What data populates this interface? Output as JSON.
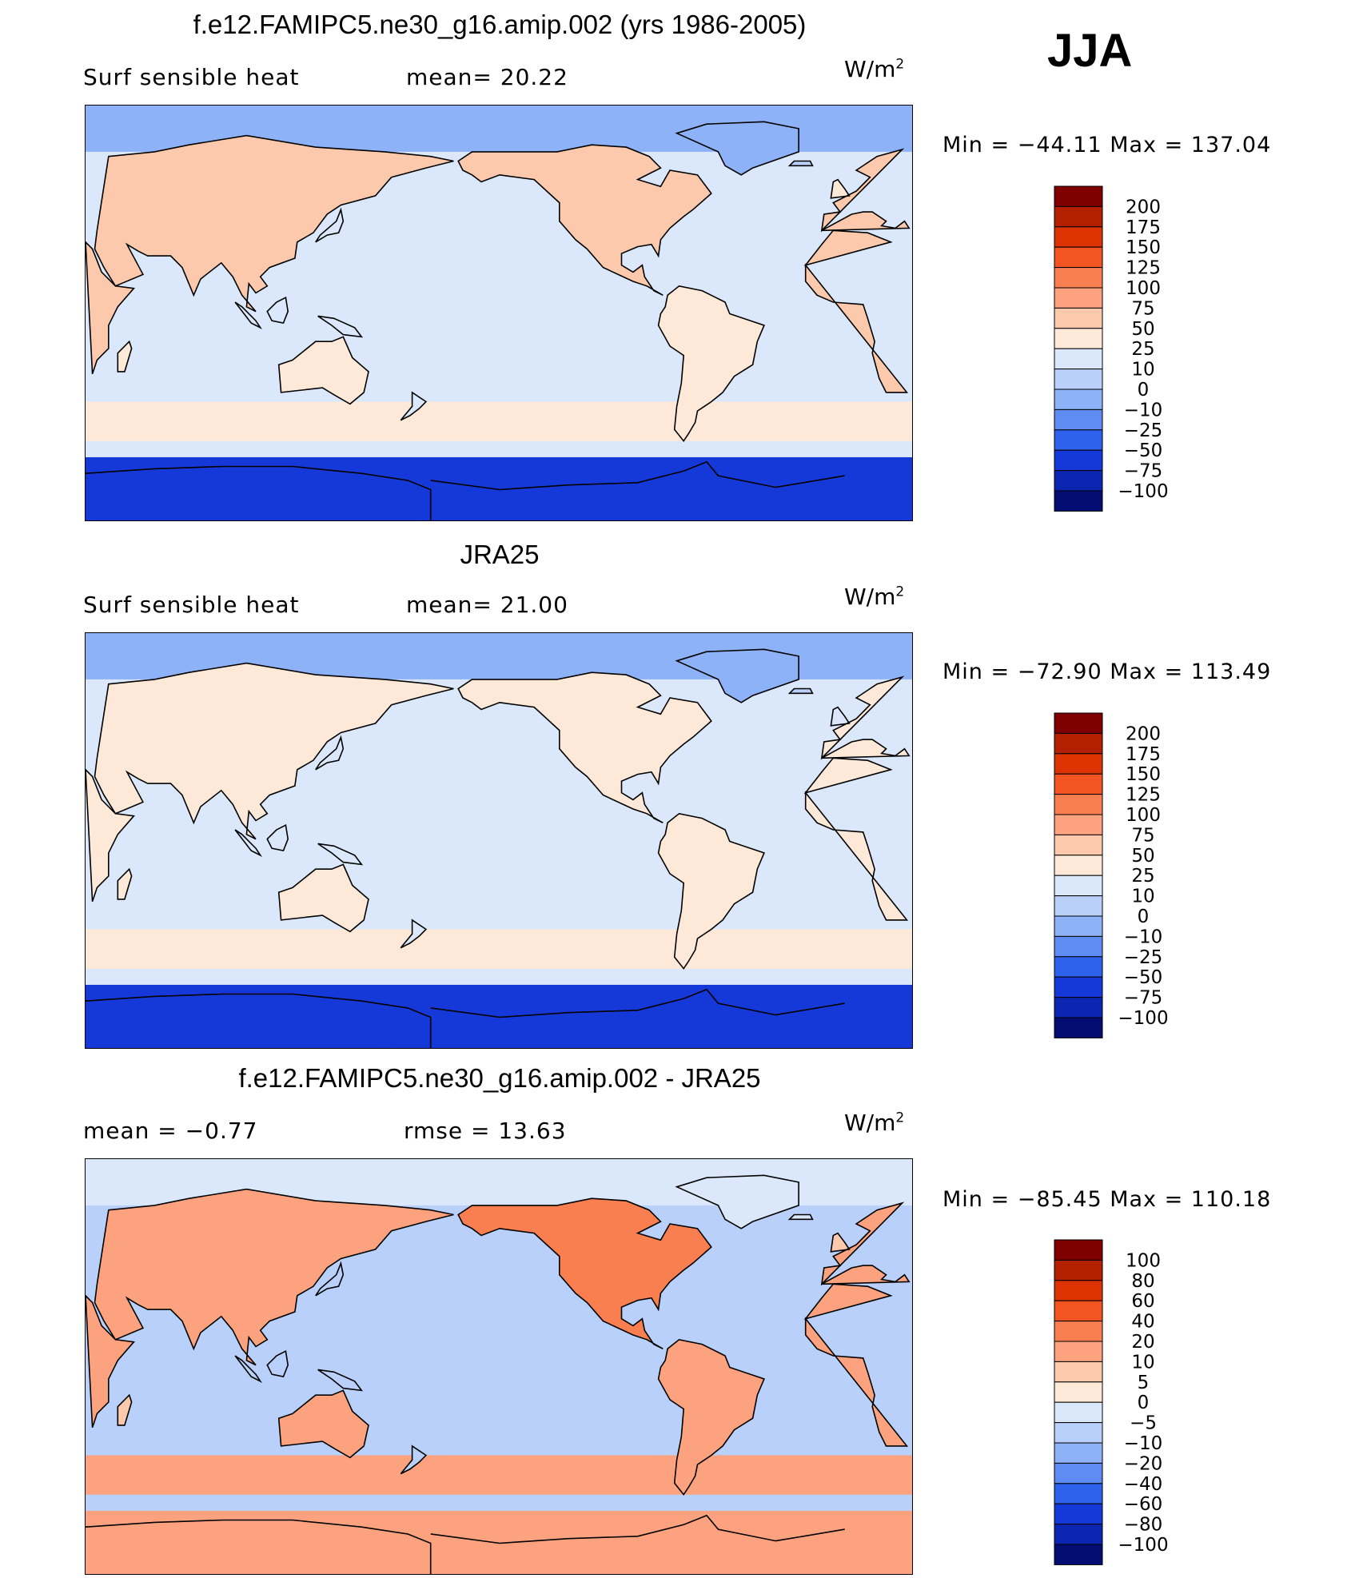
{
  "season": "JJA",
  "palette_hi_to_lo": [
    "#800000",
    "#b22000",
    "#dd3300",
    "#f25522",
    "#fa7f50",
    "#fca27e",
    "#fdc9ac",
    "#fee8d8",
    "#dbe8fb",
    "#b8d0fa",
    "#8eb2f7",
    "#5f8cf2",
    "#2d62ec",
    "#1539d8",
    "#0b26b0",
    "#030d72"
  ],
  "panels": [
    {
      "title": "f.e12.FAMIPC5.ne30_g16.amip.002 (yrs 1986-2005)",
      "left_label": "Surf  sensible  heat",
      "mid_label": "mean=   20.22",
      "units_base": "W/m",
      "units_exp": "2",
      "minmax": "Min  =  −44.11  Max  =  137.04",
      "field_summary": {
        "min": -44.11,
        "max": 137.04,
        "mean": 20.22
      },
      "colorbar_labels": [
        "200",
        "175",
        "150",
        "125",
        "100",
        "75",
        "50",
        "25",
        "10",
        "0",
        "−10",
        "−25",
        "−50",
        "−75",
        "−100"
      ],
      "ocean_level": 8,
      "antarctic_level": 13
    },
    {
      "title": "JRA25",
      "left_label": "Surf  sensible  heat",
      "mid_label": "mean=   21.00",
      "units_base": "W/m",
      "units_exp": "2",
      "minmax": "Min  =  −72.90  Max  =  113.49",
      "field_summary": {
        "min": -72.9,
        "max": 113.49,
        "mean": 21.0
      },
      "colorbar_labels": [
        "200",
        "175",
        "150",
        "125",
        "100",
        "75",
        "50",
        "25",
        "10",
        "0",
        "−10",
        "−25",
        "−50",
        "−75",
        "−100"
      ],
      "ocean_level": 8,
      "antarctic_level": 13
    },
    {
      "title": "f.e12.FAMIPC5.ne30_g16.amip.002 - JRA25",
      "left_label": "mean  =    −0.77",
      "mid_label": "rmse  =    13.63",
      "units_base": "W/m",
      "units_exp": "2",
      "minmax": "Min  =  −85.45  Max  =  110.18",
      "field_summary": {
        "min": -85.45,
        "max": 110.18,
        "mean": -0.77,
        "rmse": 13.63
      },
      "colorbar_labels": [
        "100",
        "80",
        "60",
        "40",
        "20",
        "10",
        "5",
        "0",
        "−5",
        "−10",
        "−20",
        "−40",
        "−60",
        "−80",
        "−100"
      ],
      "ocean_level": 9,
      "antarctic_level": 5
    }
  ]
}
